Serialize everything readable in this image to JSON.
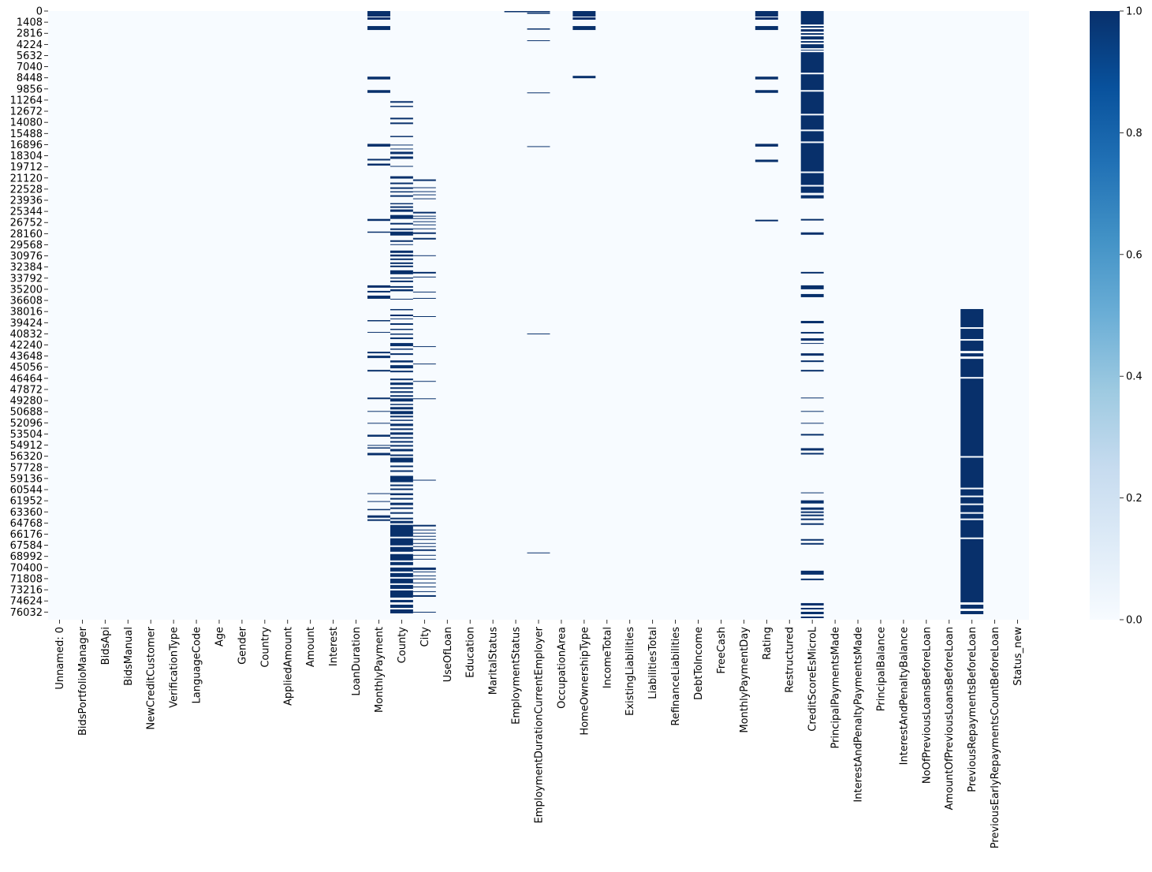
{
  "chart_data": {
    "type": "heatmap",
    "title": "",
    "xlabel": "",
    "ylabel": "",
    "colormap": "Blues",
    "color_low": "#f7fbff",
    "color_high": "#08306b",
    "value_range": [
      0,
      1
    ],
    "colorbar_ticks": [
      "0.0",
      "0.2",
      "0.4",
      "0.6",
      "0.8",
      "1.0"
    ],
    "n_rows": 77000,
    "row_tick_labels": [
      "0",
      "1408",
      "2816",
      "4224",
      "5632",
      "7040",
      "8448",
      "9856",
      "11264",
      "12672",
      "14080",
      "15488",
      "16896",
      "18304",
      "19712",
      "21120",
      "22528",
      "23936",
      "25344",
      "26752",
      "28160",
      "29568",
      "30976",
      "32384",
      "33792",
      "35200",
      "36608",
      "38016",
      "39424",
      "40832",
      "42240",
      "43648",
      "45056",
      "46464",
      "47872",
      "49280",
      "50688",
      "52096",
      "53504",
      "54912",
      "56320",
      "57728",
      "59136",
      "60544",
      "61952",
      "63360",
      "64768",
      "66176",
      "67584",
      "68992",
      "70400",
      "71808",
      "73216",
      "74624",
      "76032"
    ],
    "columns": [
      "Unnamed: 0",
      "BidsPortfolioManager",
      "BidsApi",
      "BidsManual",
      "NewCreditCustomer",
      "VerificationType",
      "LanguageCode",
      "Age",
      "Gender",
      "Country",
      "AppliedAmount",
      "Amount",
      "Interest",
      "LoanDuration",
      "MonthlyPayment",
      "County",
      "City",
      "UseOfLoan",
      "Education",
      "MaritalStatus",
      "EmploymentStatus",
      "EmploymentDurationCurrentEmployer",
      "OccupationArea",
      "HomeOwnershipType",
      "IncomeTotal",
      "ExistingLiabilities",
      "LiabilitiesTotal",
      "RefinanceLiabilities",
      "DebtToIncome",
      "FreeCash",
      "MonthlyPaymentDay",
      "Rating",
      "Restructured",
      "CreditScoreEsMicroL",
      "PrincipalPaymentsMade",
      "InterestAndPenaltyPaymentsMade",
      "PrincipalBalance",
      "InterestAndPenaltyBalance",
      "NoOfPreviousLoansBeforeLoan",
      "AmountOfPreviousLoansBeforeLoan",
      "PreviousRepaymentsBeforeLoan",
      "PreviousEarlyRepaymentsCountBeforeLoan",
      "Status_new"
    ],
    "missing_ranges": {
      "MonthlyPayment": [
        [
          0,
          700
        ],
        [
          800,
          1100
        ],
        [
          1900,
          2400
        ],
        [
          8300,
          8650
        ],
        [
          10000,
          10350
        ],
        [
          16800,
          17150
        ],
        [
          18700,
          18900
        ],
        [
          19300,
          19550
        ],
        [
          26300,
          26550
        ],
        [
          27900,
          28050
        ],
        [
          34700,
          35000
        ],
        [
          35400,
          35600
        ],
        [
          36000,
          36400
        ],
        [
          39100,
          39250
        ],
        [
          40600,
          40700
        ],
        [
          43100,
          43300
        ],
        [
          43600,
          43900
        ],
        [
          45400,
          45600
        ],
        [
          48900,
          49100
        ],
        [
          50600,
          50650
        ],
        [
          52100,
          52200
        ],
        [
          53600,
          53850
        ],
        [
          54900,
          55000
        ],
        [
          55200,
          55350
        ],
        [
          55900,
          56200
        ],
        [
          61000,
          61100
        ],
        [
          62000,
          62100
        ],
        [
          63000,
          63150
        ],
        [
          63800,
          64100
        ],
        [
          64300,
          64500
        ]
      ],
      "County": [
        [
          11400,
          11600
        ],
        [
          12000,
          12150
        ],
        [
          13500,
          13700
        ],
        [
          14100,
          14300
        ],
        [
          15800,
          15950
        ],
        [
          16900,
          17000
        ],
        [
          17400,
          17500
        ],
        [
          17800,
          18100
        ],
        [
          18400,
          18700
        ],
        [
          19600,
          19700
        ],
        [
          20900,
          21200
        ],
        [
          21700,
          21900
        ],
        [
          22300,
          22500
        ],
        [
          22800,
          22950
        ],
        [
          23300,
          23500
        ],
        [
          24300,
          24450
        ],
        [
          24700,
          24900
        ],
        [
          25100,
          25400
        ],
        [
          25800,
          26300
        ],
        [
          26800,
          27000
        ],
        [
          27500,
          27700
        ],
        [
          27900,
          28400
        ],
        [
          29000,
          29200
        ],
        [
          29500,
          29600
        ],
        [
          30300,
          30600
        ],
        [
          30800,
          31050
        ],
        [
          31300,
          31500
        ],
        [
          31800,
          32000
        ],
        [
          32200,
          32400
        ],
        [
          32800,
          33300
        ],
        [
          33700,
          33850
        ],
        [
          34100,
          34300
        ],
        [
          34800,
          35000
        ],
        [
          35200,
          35450
        ],
        [
          36400,
          36500
        ],
        [
          37700,
          37850
        ],
        [
          38400,
          38600
        ],
        [
          38900,
          39000
        ],
        [
          39500,
          39700
        ],
        [
          40200,
          40350
        ],
        [
          40800,
          40950
        ],
        [
          41300,
          41500
        ],
        [
          42000,
          42400
        ],
        [
          42700,
          42850
        ],
        [
          43300,
          43500
        ],
        [
          44200,
          44450
        ],
        [
          44800,
          45200
        ],
        [
          45500,
          45700
        ],
        [
          46500,
          46700
        ],
        [
          47000,
          47300
        ],
        [
          47600,
          47800
        ],
        [
          48100,
          48300
        ],
        [
          48600,
          48800
        ],
        [
          49000,
          49400
        ],
        [
          49700,
          49850
        ],
        [
          50100,
          50400
        ],
        [
          50600,
          51000
        ],
        [
          51200,
          51400
        ],
        [
          51700,
          51850
        ],
        [
          52200,
          52500
        ],
        [
          52800,
          53000
        ],
        [
          53300,
          53600
        ],
        [
          53900,
          54100
        ],
        [
          54400,
          54600
        ],
        [
          54900,
          55100
        ],
        [
          55400,
          55700
        ],
        [
          56100,
          56300
        ],
        [
          56500,
          57100
        ],
        [
          57500,
          57700
        ],
        [
          58100,
          58300
        ],
        [
          58800,
          59600
        ],
        [
          59900,
          60100
        ],
        [
          60400,
          60600
        ],
        [
          61000,
          61250
        ],
        [
          61600,
          61800
        ],
        [
          62200,
          62500
        ],
        [
          62800,
          63000
        ],
        [
          63400,
          63600
        ],
        [
          64100,
          64300
        ],
        [
          64500,
          64800
        ],
        [
          65000,
          66500
        ],
        [
          66700,
          67600
        ],
        [
          67800,
          68400
        ],
        [
          68700,
          69500
        ],
        [
          69700,
          70100
        ],
        [
          70400,
          70900
        ],
        [
          71100,
          71600
        ],
        [
          71800,
          72400
        ],
        [
          72600,
          73100
        ],
        [
          73300,
          74200
        ],
        [
          74500,
          74800
        ],
        [
          75100,
          75500
        ],
        [
          75700,
          76200
        ]
      ],
      "City": [
        [
          21300,
          21500
        ],
        [
          22300,
          22400
        ],
        [
          22800,
          22900
        ],
        [
          23200,
          23300
        ],
        [
          23700,
          23800
        ],
        [
          25400,
          25600
        ],
        [
          25900,
          26000
        ],
        [
          26200,
          26300
        ],
        [
          26600,
          26700
        ],
        [
          27000,
          27100
        ],
        [
          27500,
          27600
        ],
        [
          28000,
          28200
        ],
        [
          28700,
          28900
        ],
        [
          30900,
          31000
        ],
        [
          33000,
          33200
        ],
        [
          33600,
          33700
        ],
        [
          35500,
          35600
        ],
        [
          36300,
          36400
        ],
        [
          38600,
          38700
        ],
        [
          42400,
          42500
        ],
        [
          44600,
          44700
        ],
        [
          46800,
          46900
        ],
        [
          49000,
          49100
        ],
        [
          59300,
          59400
        ],
        [
          65000,
          65200
        ],
        [
          65600,
          65700
        ],
        [
          66000,
          66100
        ],
        [
          66400,
          66500
        ],
        [
          66800,
          66900
        ],
        [
          67300,
          67400
        ],
        [
          67700,
          67800
        ],
        [
          68100,
          68300
        ],
        [
          68800,
          68900
        ],
        [
          69300,
          69400
        ],
        [
          70400,
          70700
        ],
        [
          70900,
          71000
        ],
        [
          71400,
          71500
        ],
        [
          71800,
          71900
        ],
        [
          72300,
          72400
        ],
        [
          72800,
          72900
        ],
        [
          73400,
          73500
        ],
        [
          73900,
          74100
        ],
        [
          76000,
          76100
        ]
      ],
      "EmploymentStatus": [
        [
          0,
          150
        ]
      ],
      "EmploymentDurationCurrentEmployer": [
        [
          0,
          150
        ],
        [
          200,
          350
        ],
        [
          2200,
          2350
        ],
        [
          3700,
          3800
        ],
        [
          10300,
          10400
        ],
        [
          17100,
          17200
        ],
        [
          40800,
          40900
        ],
        [
          68500,
          68600
        ]
      ],
      "HomeOwnershipType": [
        [
          0,
          700
        ],
        [
          800,
          1100
        ],
        [
          1900,
          2400
        ],
        [
          8200,
          8500
        ]
      ],
      "Rating": [
        [
          0,
          700
        ],
        [
          800,
          1100
        ],
        [
          1900,
          2400
        ],
        [
          8300,
          8650
        ],
        [
          10000,
          10350
        ],
        [
          16800,
          17150
        ],
        [
          18800,
          19100
        ],
        [
          26400,
          26600
        ]
      ],
      "CreditScoreEsMicroL": [
        [
          0,
          1700
        ],
        [
          1900,
          2100
        ],
        [
          2300,
          2600
        ],
        [
          2800,
          3000
        ],
        [
          3200,
          3600
        ],
        [
          3800,
          4000
        ],
        [
          4200,
          4700
        ],
        [
          4900,
          5000
        ],
        [
          5200,
          7800
        ],
        [
          8000,
          10000
        ],
        [
          10200,
          13000
        ],
        [
          13200,
          15000
        ],
        [
          15200,
          16500
        ],
        [
          16700,
          20300
        ],
        [
          20500,
          22000
        ],
        [
          22200,
          23000
        ],
        [
          23300,
          23700
        ],
        [
          26300,
          26500
        ],
        [
          28000,
          28300
        ],
        [
          33000,
          33200
        ],
        [
          34700,
          35200
        ],
        [
          35800,
          36200
        ],
        [
          39200,
          39500
        ],
        [
          40600,
          40800
        ],
        [
          41400,
          41700
        ],
        [
          42000,
          42100
        ],
        [
          43300,
          43600
        ],
        [
          44200,
          44400
        ],
        [
          45400,
          45600
        ],
        [
          48900,
          49000
        ],
        [
          50600,
          50700
        ],
        [
          52100,
          52200
        ],
        [
          53500,
          53700
        ],
        [
          55300,
          55600
        ],
        [
          55900,
          56100
        ],
        [
          60900,
          61000
        ],
        [
          61900,
          62300
        ],
        [
          62800,
          63100
        ],
        [
          63300,
          63500
        ],
        [
          63700,
          63900
        ],
        [
          64200,
          64400
        ],
        [
          64800,
          65000
        ],
        [
          66800,
          67000
        ],
        [
          67300,
          67500
        ],
        [
          70800,
          71300
        ],
        [
          71800,
          72000
        ],
        [
          74900,
          75200
        ],
        [
          75500,
          75700
        ],
        [
          76000,
          76300
        ],
        [
          76600,
          76800
        ]
      ],
      "PreviousRepaymentsBeforeLoan": [
        [
          37700,
          40000
        ],
        [
          40200,
          41500
        ],
        [
          41700,
          43000
        ],
        [
          43300,
          43700
        ],
        [
          44000,
          46300
        ],
        [
          46500,
          56300
        ],
        [
          56500,
          60300
        ],
        [
          60500,
          61300
        ],
        [
          61500,
          62300
        ],
        [
          62500,
          63400
        ],
        [
          63600,
          64200
        ],
        [
          64400,
          66600
        ],
        [
          66800,
          74800
        ],
        [
          75100,
          75600
        ],
        [
          75900,
          76300
        ]
      ]
    }
  }
}
